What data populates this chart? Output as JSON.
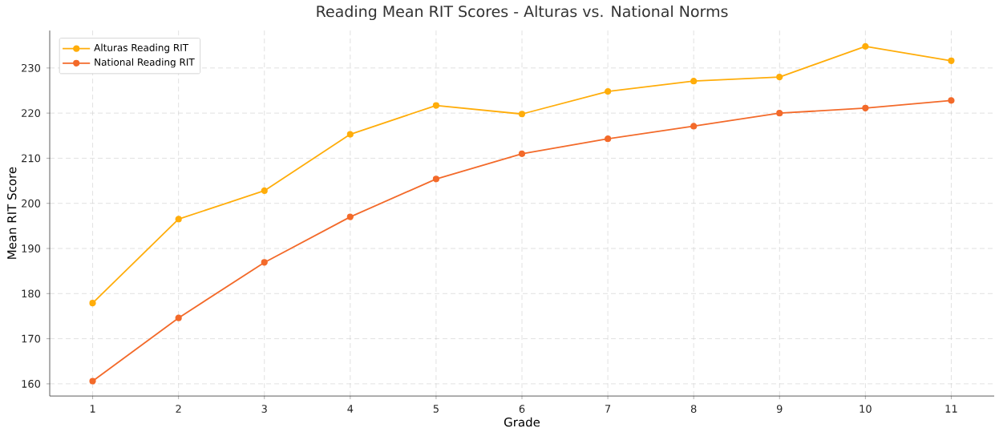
{
  "chart_data": {
    "type": "line",
    "title": "Reading Mean RIT Scores - Alturas vs. National Norms",
    "xlabel": "Grade",
    "ylabel": "Mean RIT Score",
    "x": [
      1,
      2,
      3,
      4,
      5,
      6,
      7,
      8,
      9,
      10,
      11
    ],
    "series": [
      {
        "name": "Alturas Reading RIT",
        "color": "#ffad0a",
        "values": [
          177.9,
          196.5,
          202.8,
          215.3,
          221.7,
          219.8,
          224.8,
          227.1,
          228.0,
          234.8,
          231.6
        ]
      },
      {
        "name": "National Reading RIT",
        "color": "#f36a2a",
        "values": [
          160.6,
          174.6,
          186.9,
          197.0,
          205.4,
          211.0,
          214.3,
          217.1,
          220.0,
          221.1,
          222.8
        ]
      }
    ],
    "xlim": [
      0.5,
      11.5
    ],
    "xticks": [
      1,
      2,
      3,
      4,
      5,
      6,
      7,
      8,
      9,
      10,
      11
    ],
    "ylim": [
      157.3,
      238.3
    ],
    "yticks": [
      160,
      170,
      180,
      190,
      200,
      210,
      220,
      230
    ],
    "grid": true,
    "legend": "top left",
    "marker": "circle",
    "line_style": "solid"
  }
}
